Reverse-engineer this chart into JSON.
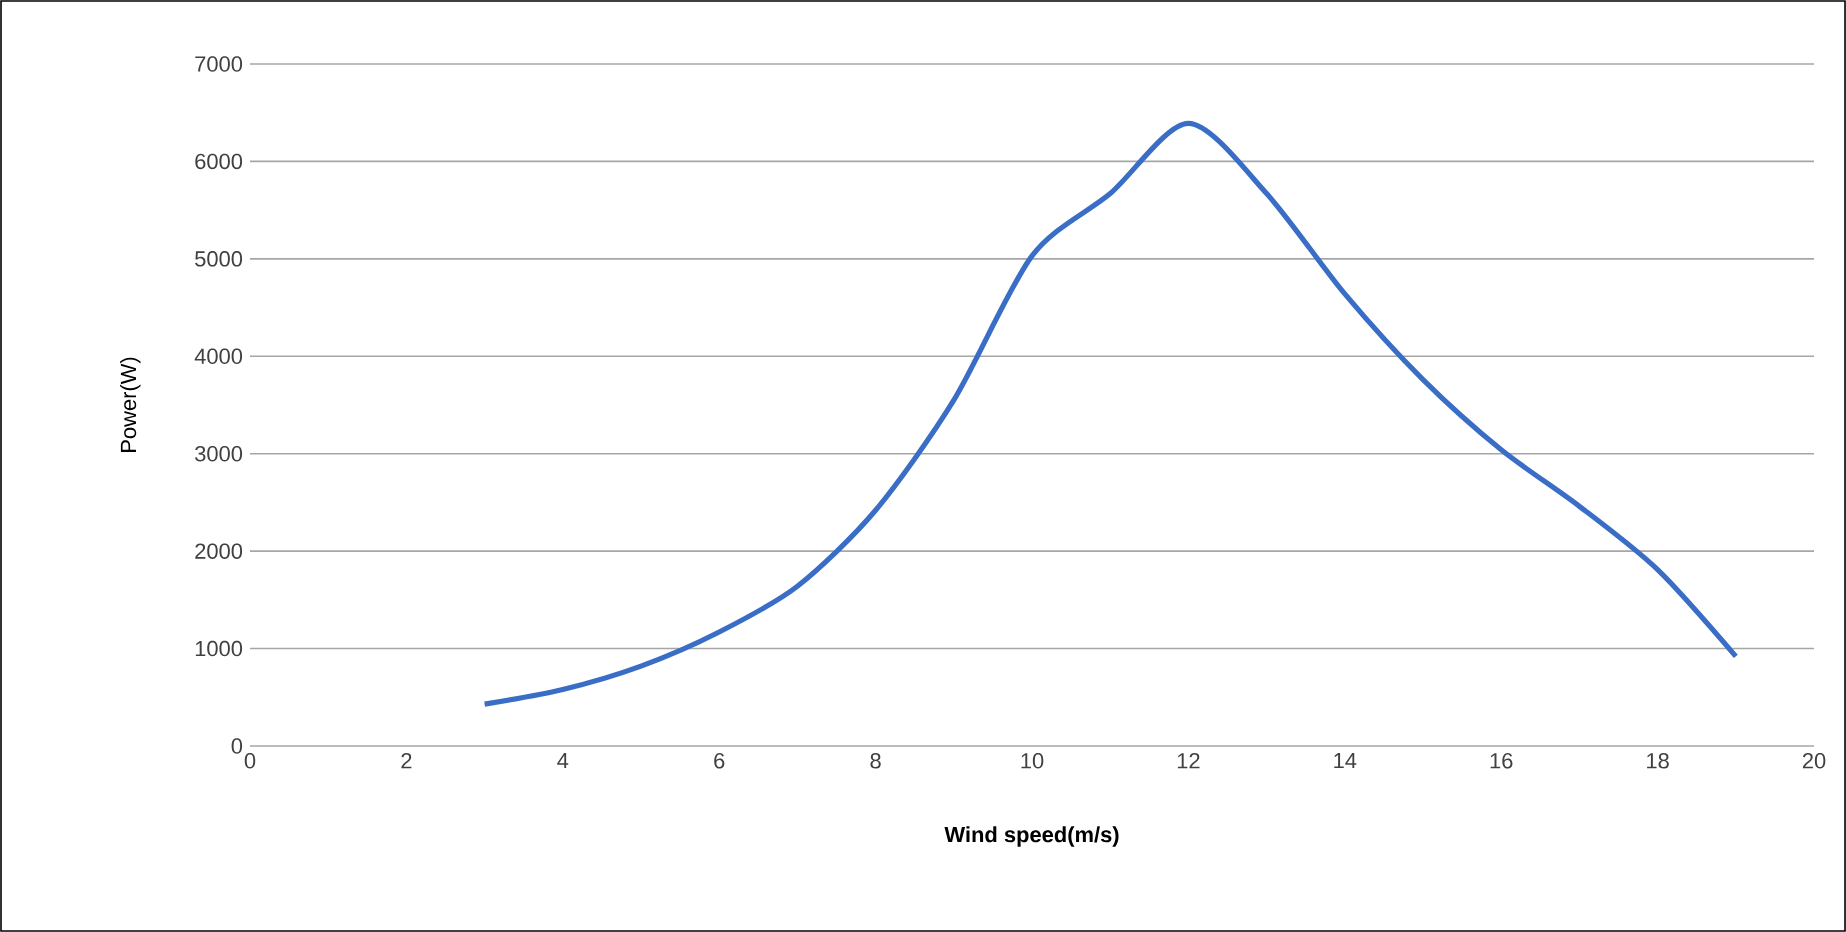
{
  "chart_data": {
    "type": "line",
    "xlabel": "Wind speed(m/s)",
    "ylabel": "Power(W)",
    "x": [
      3,
      4,
      5,
      6,
      7,
      8,
      9,
      10,
      11,
      12,
      13,
      14,
      15,
      16,
      17,
      18,
      19
    ],
    "series": [
      {
        "color": "#3a6ec6",
        "values": [
          430,
          580,
          820,
          1170,
          1640,
          2420,
          3550,
          5030,
          5670,
          6390,
          5670,
          4640,
          3760,
          3040,
          2460,
          1810,
          920
        ]
      }
    ],
    "xlim": [
      0,
      20
    ],
    "xticks": [
      0,
      2,
      4,
      6,
      8,
      10,
      12,
      14,
      16,
      18,
      20
    ],
    "ylim": [
      0,
      7000
    ],
    "yticks": [
      0,
      1000,
      2000,
      3000,
      4000,
      5000,
      6000,
      7000
    ],
    "grid": "y",
    "marker": "none",
    "line_style": "solid"
  }
}
